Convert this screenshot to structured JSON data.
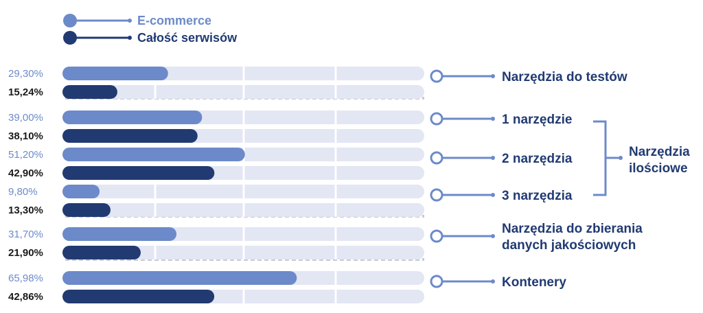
{
  "legend": [
    {
      "label": "E-commerce",
      "color": "#6c8ac9"
    },
    {
      "label": "Całość serwisów",
      "color": "#213a72"
    }
  ],
  "colors": {
    "track": "#e3e6f3",
    "gridline": "#ffffff",
    "separator": "#c9cbd2",
    "connector": "#6c8ac9",
    "category_text": "#213a72"
  },
  "chart_data": {
    "type": "bar",
    "orientation": "horizontal",
    "xlim": [
      0,
      100
    ],
    "series": [
      {
        "name": "E-commerce",
        "values": [
          29.3,
          39.0,
          51.2,
          9.8,
          31.7,
          65.98
        ],
        "labels": [
          "29,30%",
          "39,00%",
          "51,20%",
          "9,80%",
          "31,70%",
          "65,98%"
        ]
      },
      {
        "name": "Całość serwisów",
        "values": [
          15.24,
          38.1,
          42.9,
          13.3,
          21.9,
          42.86
        ],
        "labels": [
          "15,24%",
          "38,10%",
          "42,90%",
          "13,30%",
          "21,90%",
          "42,86%"
        ]
      }
    ],
    "categories": [
      "Narzędzia do testów",
      "1 narzędzie",
      "2 narzędzia",
      "3 narzędzia",
      "Narzędzia do zbierania danych jakościowych",
      "Kontenery"
    ],
    "category_lines": [
      [
        "Narzędzia do testów"
      ],
      [
        "1 narzędzie"
      ],
      [
        "2 narzędzia"
      ],
      [
        "3 narzędzia"
      ],
      [
        "Narzędzia do zbierania",
        "danych jakościowych"
      ],
      [
        "Kontenery"
      ]
    ],
    "group_label": [
      "Narzędzia",
      "ilościowe"
    ]
  }
}
